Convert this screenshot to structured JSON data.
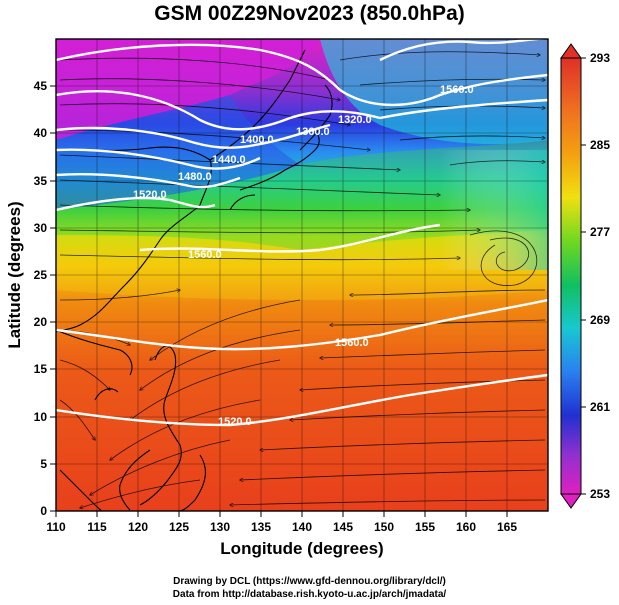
{
  "title": "GSM 00Z29Nov2023 (850.0hPa)",
  "x_axis_label": "Longitude (degrees)",
  "y_axis_label": "Latitude  (degrees)",
  "x_ticks": [
    "110",
    "115",
    "120",
    "125",
    "130",
    "135",
    "140",
    "145",
    "150",
    "155",
    "160",
    "165"
  ],
  "y_ticks": [
    "0",
    "5",
    "10",
    "15",
    "20",
    "25",
    "30",
    "35",
    "40",
    "45"
  ],
  "colorbar_ticks": [
    "293",
    "285",
    "277",
    "269",
    "261",
    "253"
  ],
  "credit_line1": "Drawing by DCL (https://www.gfd-dennou.org/library/dcl/)",
  "credit_line2": "Data from http://database.rish.kyoto-u.ac.jp/arch/jmadata/",
  "contour_labels": [
    "1320.0",
    "1360.0",
    "1400.0",
    "1440.0",
    "1480.0",
    "1520.0",
    "1560.0",
    "1560.0",
    "1560.0",
    "1520.0"
  ],
  "colors": {
    "contour": "#ffffff",
    "coastline": "#000000",
    "colorbar_top": "#e03028",
    "colorbar_bottom": "#e020c0"
  },
  "map_data": {
    "lon_range": [
      110,
      170
    ],
    "lat_range": [
      0,
      50
    ],
    "colorbar_range": [
      253,
      293
    ],
    "fields": [
      "temperature (shaded)",
      "geopotential height (white contours)",
      "wind (streamlines)"
    ]
  }
}
